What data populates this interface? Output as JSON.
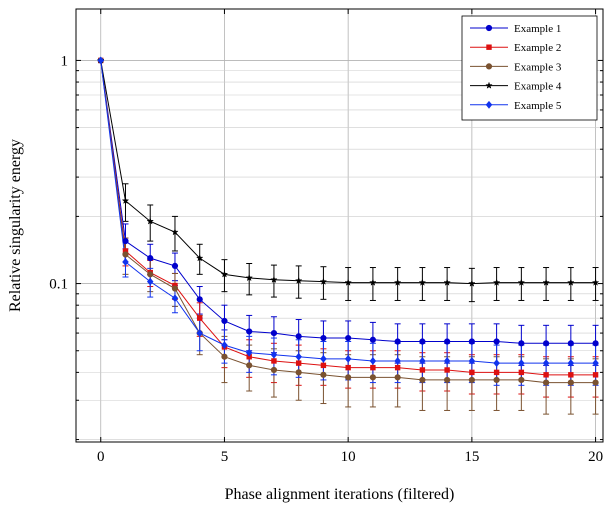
{
  "chart_data": {
    "type": "line",
    "title": "",
    "xlabel": "Phase alignment iterations (filtered)",
    "ylabel": "Relative singularity energy",
    "xlim": [
      -1,
      20.3
    ],
    "ylim": [
      0.0195,
      1.7
    ],
    "yscale": "log",
    "grid": true,
    "legend_position": "top-right",
    "xticks": [
      0,
      5,
      10,
      15,
      20
    ],
    "xtick_labels": [
      "0",
      "5",
      "10",
      "15",
      "20"
    ],
    "yticks": [
      0.1,
      1
    ],
    "ytick_labels": [
      "0.1",
      "1"
    ],
    "x": [
      0,
      1,
      2,
      3,
      4,
      5,
      6,
      7,
      8,
      9,
      10,
      11,
      12,
      13,
      14,
      15,
      16,
      17,
      18,
      19,
      20
    ],
    "series": [
      {
        "name": "Example 1",
        "color": "#0000cc",
        "marker": "circle",
        "values": [
          1.0,
          0.155,
          0.13,
          0.12,
          0.085,
          0.068,
          0.061,
          0.06,
          0.058,
          0.057,
          0.057,
          0.056,
          0.055,
          0.055,
          0.055,
          0.055,
          0.055,
          0.054,
          0.054,
          0.054,
          0.054
        ],
        "errors": [
          0,
          0.03,
          0.02,
          0.017,
          0.012,
          0.012,
          0.011,
          0.011,
          0.011,
          0.011,
          0.011,
          0.011,
          0.011,
          0.011,
          0.011,
          0.011,
          0.011,
          0.011,
          0.011,
          0.011,
          0.011
        ]
      },
      {
        "name": "Example 2",
        "color": "#dd1111",
        "marker": "square",
        "values": [
          1.0,
          0.14,
          0.112,
          0.098,
          0.07,
          0.052,
          0.047,
          0.045,
          0.044,
          0.043,
          0.042,
          0.042,
          0.042,
          0.041,
          0.041,
          0.04,
          0.04,
          0.04,
          0.039,
          0.039,
          0.039
        ],
        "errors": [
          0,
          0.02,
          0.015,
          0.013,
          0.012,
          0.01,
          0.009,
          0.009,
          0.009,
          0.008,
          0.008,
          0.008,
          0.008,
          0.008,
          0.008,
          0.008,
          0.008,
          0.008,
          0.008,
          0.008,
          0.008
        ]
      },
      {
        "name": "Example 3",
        "color": "#7a5230",
        "marker": "circle",
        "values": [
          1.0,
          0.135,
          0.11,
          0.095,
          0.06,
          0.047,
          0.043,
          0.041,
          0.04,
          0.039,
          0.038,
          0.038,
          0.038,
          0.037,
          0.037,
          0.037,
          0.037,
          0.037,
          0.036,
          0.036,
          0.036
        ],
        "errors": [
          0,
          0.025,
          0.018,
          0.016,
          0.012,
          0.011,
          0.01,
          0.01,
          0.01,
          0.01,
          0.01,
          0.01,
          0.01,
          0.01,
          0.01,
          0.01,
          0.01,
          0.01,
          0.01,
          0.01,
          0.01
        ]
      },
      {
        "name": "Example 4",
        "color": "#000000",
        "marker": "star",
        "values": [
          1.0,
          0.235,
          0.19,
          0.17,
          0.13,
          0.11,
          0.106,
          0.104,
          0.103,
          0.102,
          0.101,
          0.101,
          0.101,
          0.101,
          0.101,
          0.1,
          0.101,
          0.101,
          0.101,
          0.101,
          0.101
        ],
        "errors": [
          0,
          0.045,
          0.035,
          0.03,
          0.02,
          0.018,
          0.017,
          0.017,
          0.017,
          0.017,
          0.017,
          0.017,
          0.017,
          0.017,
          0.017,
          0.017,
          0.017,
          0.017,
          0.017,
          0.017,
          0.017
        ]
      },
      {
        "name": "Example 5",
        "color": "#1133ee",
        "marker": "diamond",
        "values": [
          1.0,
          0.125,
          0.102,
          0.086,
          0.06,
          0.053,
          0.049,
          0.048,
          0.047,
          0.046,
          0.046,
          0.045,
          0.045,
          0.045,
          0.045,
          0.045,
          0.044,
          0.044,
          0.044,
          0.044,
          0.044
        ],
        "errors": [
          0,
          0.018,
          0.015,
          0.012,
          0.01,
          0.009,
          0.009,
          0.009,
          0.009,
          0.009,
          0.009,
          0.009,
          0.009,
          0.009,
          0.009,
          0.009,
          0.009,
          0.009,
          0.009,
          0.009,
          0.009
        ]
      }
    ]
  }
}
